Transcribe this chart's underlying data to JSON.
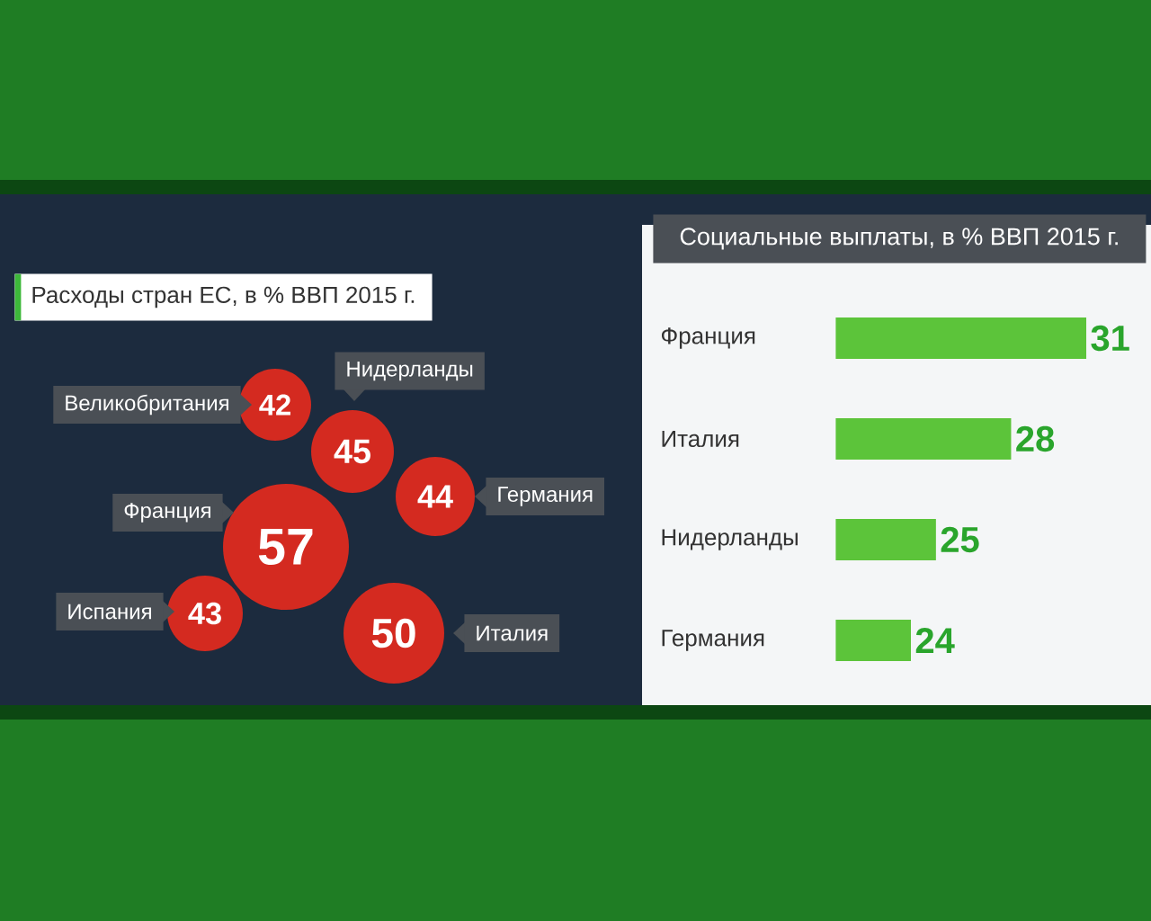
{
  "chart_data": [
    {
      "type": "other",
      "title": "Расходы стран ЕС, в % ВВП 2015 г.",
      "categories": [
        "Великобритания",
        "Нидерланды",
        "Германия",
        "Франция",
        "Испания",
        "Италия"
      ],
      "values": [
        42,
        45,
        44,
        57,
        43,
        50
      ],
      "color": "#d42a20",
      "data_labels": true
    },
    {
      "type": "bar",
      "orientation": "horizontal",
      "title": "Социальные выплаты, в % ВВП 2015 г.",
      "categories": [
        "Франция",
        "Италия",
        "Нидерланды",
        "Германия"
      ],
      "values": [
        31,
        28,
        25,
        24
      ],
      "color": "#5cc43a",
      "xlim": [
        21,
        31
      ],
      "data_labels": true,
      "tick_labels": "y"
    }
  ]
}
